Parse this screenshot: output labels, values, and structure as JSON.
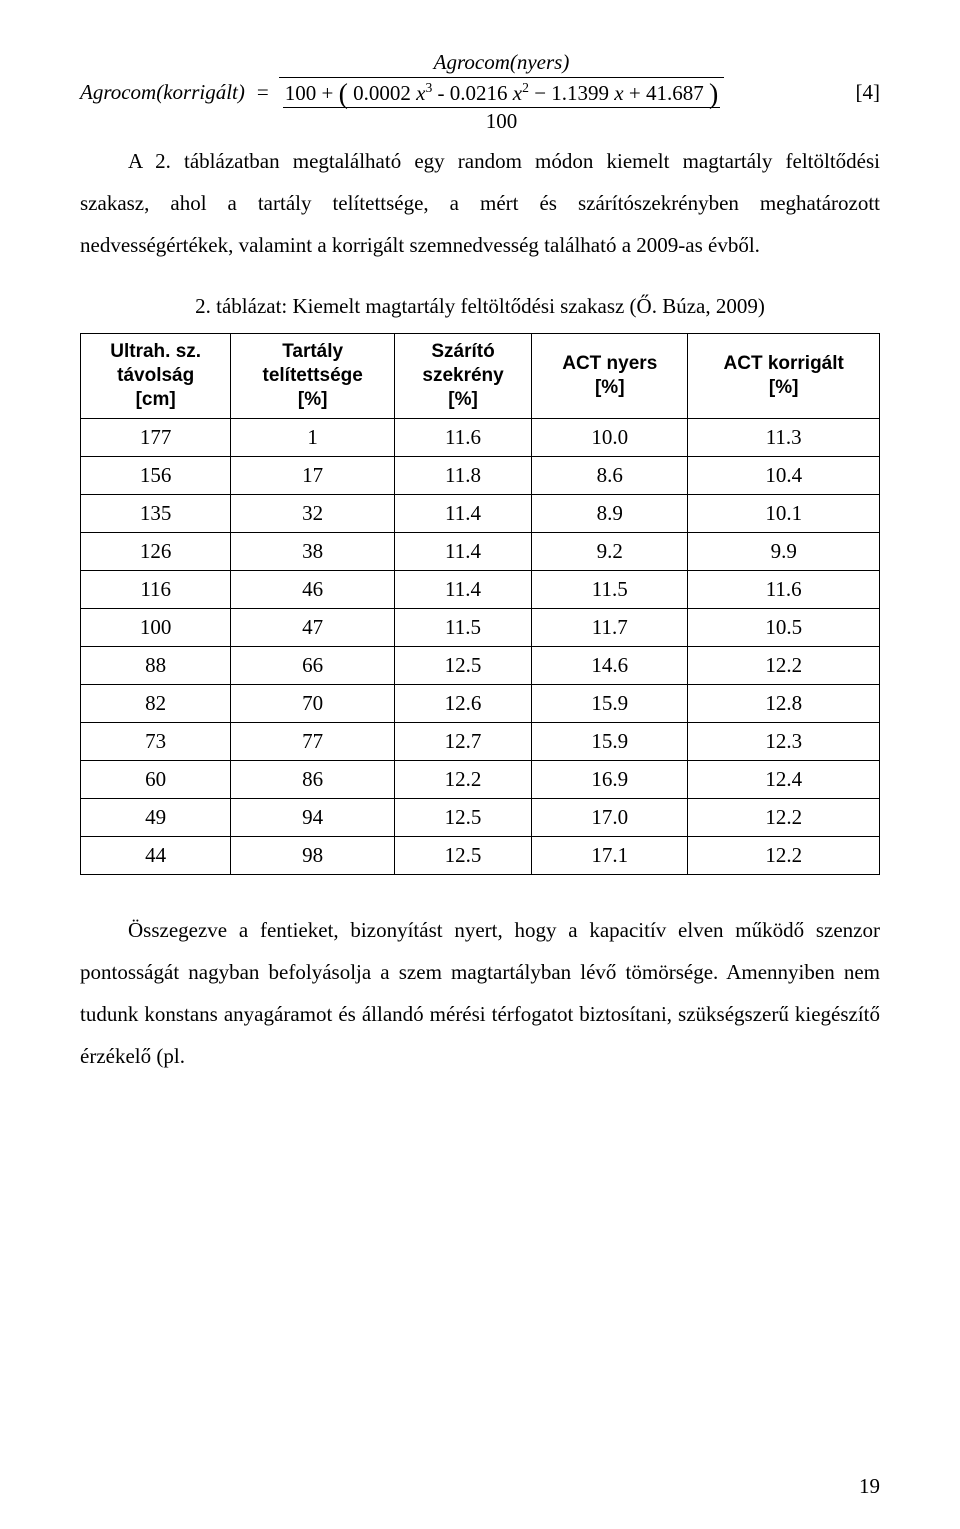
{
  "equation": {
    "lhs": "Agrocom(korrigált)",
    "numerator_label": "Agrocom(nyers)",
    "a3": "0.0002",
    "a2": "0.0216",
    "a1": "1.1399",
    "a0": "41.687",
    "outer_denominator": "100",
    "prefix_plus": "100",
    "tag": "[4]"
  },
  "paragraphs": {
    "p1": "A 2. táblázatban megtalálható egy random módon kiemelt magtartály feltöltődési szakasz, ahol a tartály telítettsége, a mért és szárítószekrényben meghatározott nedvességértékek, valamint a korrigált szemnedvesség található a 2009-as évből.",
    "p2": "Összegezve a fentieket, bizonyítást nyert, hogy a kapacitív elven működő szenzor pontosságát nagyban befolyásolja a szem magtartályban lévő tömörsége. Amennyiben nem tudunk konstans anyagáramot és állandó mérési térfogatot biztosítani, szükségszerű kiegészítő érzékelő (pl."
  },
  "table": {
    "caption": "2. táblázat: Kiemelt magtartály feltöltődési szakasz (Ő. Búza, 2009)",
    "headers": {
      "c0": "Ultrah. sz.\ntávolság\n[cm]",
      "c1": "Tartály\ntelítettsége\n[%]",
      "c2": "Szárító\nszekrény\n[%]",
      "c3": "ACT nyers\n[%]",
      "c4": "ACT korrigált\n[%]"
    },
    "rows": [
      [
        "177",
        "1",
        "11.6",
        "10.0",
        "11.3"
      ],
      [
        "156",
        "17",
        "11.8",
        "8.6",
        "10.4"
      ],
      [
        "135",
        "32",
        "11.4",
        "8.9",
        "10.1"
      ],
      [
        "126",
        "38",
        "11.4",
        "9.2",
        "9.9"
      ],
      [
        "116",
        "46",
        "11.4",
        "11.5",
        "11.6"
      ],
      [
        "100",
        "47",
        "11.5",
        "11.7",
        "10.5"
      ],
      [
        "88",
        "66",
        "12.5",
        "14.6",
        "12.2"
      ],
      [
        "82",
        "70",
        "12.6",
        "15.9",
        "12.8"
      ],
      [
        "73",
        "77",
        "12.7",
        "15.9",
        "12.3"
      ],
      [
        "60",
        "86",
        "12.2",
        "16.9",
        "12.4"
      ],
      [
        "49",
        "94",
        "12.5",
        "17.0",
        "12.2"
      ],
      [
        "44",
        "98",
        "12.5",
        "17.1",
        "12.2"
      ]
    ]
  },
  "page_number": "19"
}
